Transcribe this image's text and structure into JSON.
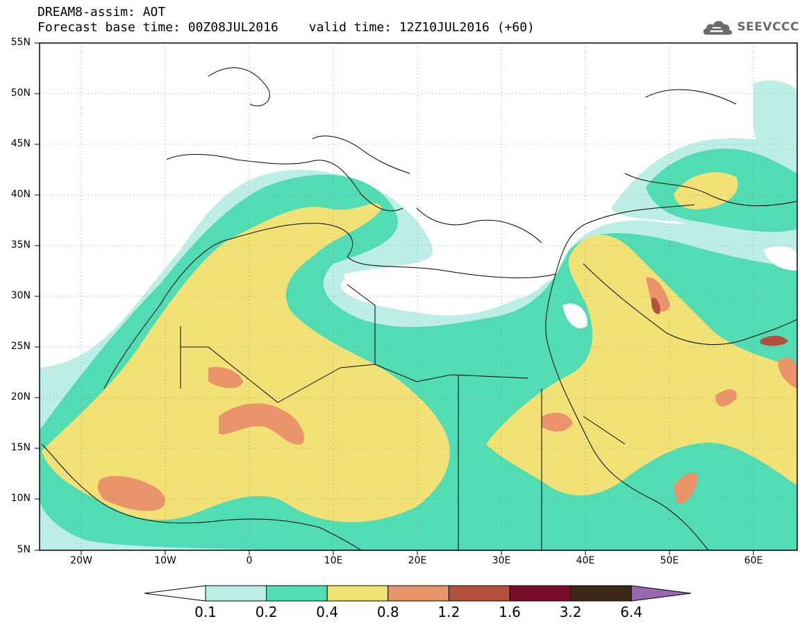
{
  "header": {
    "line1": "DREAM8-assim: AOT",
    "base_time": "Forecast base time: 00Z08JUL2016",
    "valid_time": "valid time: 12Z10JUL2016 (+60)"
  },
  "logo": {
    "text": "SEEVCCC",
    "icon": "cloud-logo-icon",
    "color": "#6b6b6b"
  },
  "axes": {
    "lat_labels": [
      "55N",
      "50N",
      "45N",
      "40N",
      "35N",
      "30N",
      "25N",
      "20N",
      "15N",
      "10N",
      "5N"
    ],
    "lon_labels": [
      "20W",
      "10W",
      "0",
      "10E",
      "20E",
      "30E",
      "40E",
      "50E",
      "60E"
    ],
    "lat_range": [
      5,
      55
    ],
    "lon_range": [
      -25,
      65
    ]
  },
  "colorbar": {
    "levels": [
      "0.1",
      "0.2",
      "0.4",
      "0.8",
      "1.2",
      "1.6",
      "3.2",
      "6.4"
    ],
    "colors": [
      "#ffffff",
      "#bdeee6",
      "#52dcb4",
      "#f2e276",
      "#ea946b",
      "#b3503e",
      "#7a0d29",
      "#3d2816",
      "#9a68b0"
    ]
  }
}
